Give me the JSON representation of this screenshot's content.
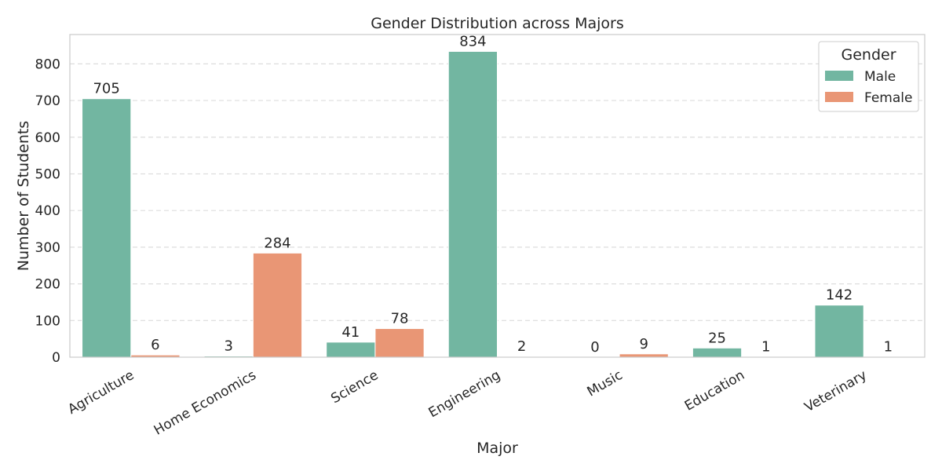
{
  "chart_data": {
    "type": "bar",
    "title": "Gender Distribution across Majors",
    "xlabel": "Major",
    "ylabel": "Number of Students",
    "categories": [
      "Agriculture",
      "Home Economics",
      "Science",
      "Engineering",
      "Music",
      "Education",
      "Veterinary"
    ],
    "series": [
      {
        "name": "Male",
        "values": [
          705,
          3,
          41,
          834,
          0,
          25,
          142
        ],
        "color": "#72b6a1"
      },
      {
        "name": "Female",
        "values": [
          6,
          284,
          78,
          2,
          9,
          1,
          1
        ],
        "color": "#e99675"
      }
    ],
    "ylim": [
      0,
      880
    ],
    "yticks": [
      0,
      100,
      200,
      300,
      400,
      500,
      600,
      700,
      800
    ],
    "grid": true,
    "legend": {
      "title": "Gender",
      "placement": "top-right"
    }
  }
}
